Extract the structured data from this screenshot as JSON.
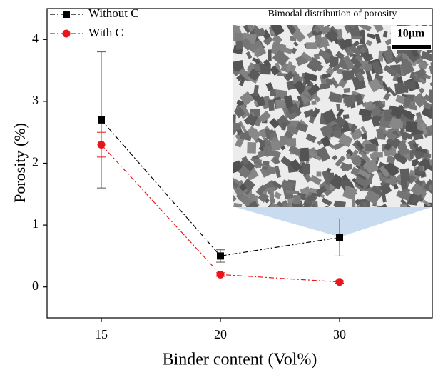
{
  "chart_data": {
    "type": "line",
    "categories": [
      "15",
      "20",
      "30"
    ],
    "series": [
      {
        "name": "Without C",
        "color": "#000000",
        "marker": "square",
        "values": [
          2.7,
          0.5,
          0.8
        ],
        "errors": [
          1.1,
          0.1,
          0.3
        ]
      },
      {
        "name": "With C",
        "color": "#e8161b",
        "marker": "circle",
        "values": [
          2.3,
          0.2,
          0.08
        ],
        "errors": [
          0.2,
          0.03,
          0.02
        ]
      }
    ],
    "x_label": "Binder content (Vol%)",
    "y_label": "Porosity (%)",
    "ylim": [
      -0.5,
      4.5
    ],
    "yticks": [
      0,
      1,
      2,
      3,
      4
    ],
    "legend": "upper left",
    "inset": {
      "title": "Bimodal distribution of porosity",
      "scale_bar": "10μm"
    }
  }
}
